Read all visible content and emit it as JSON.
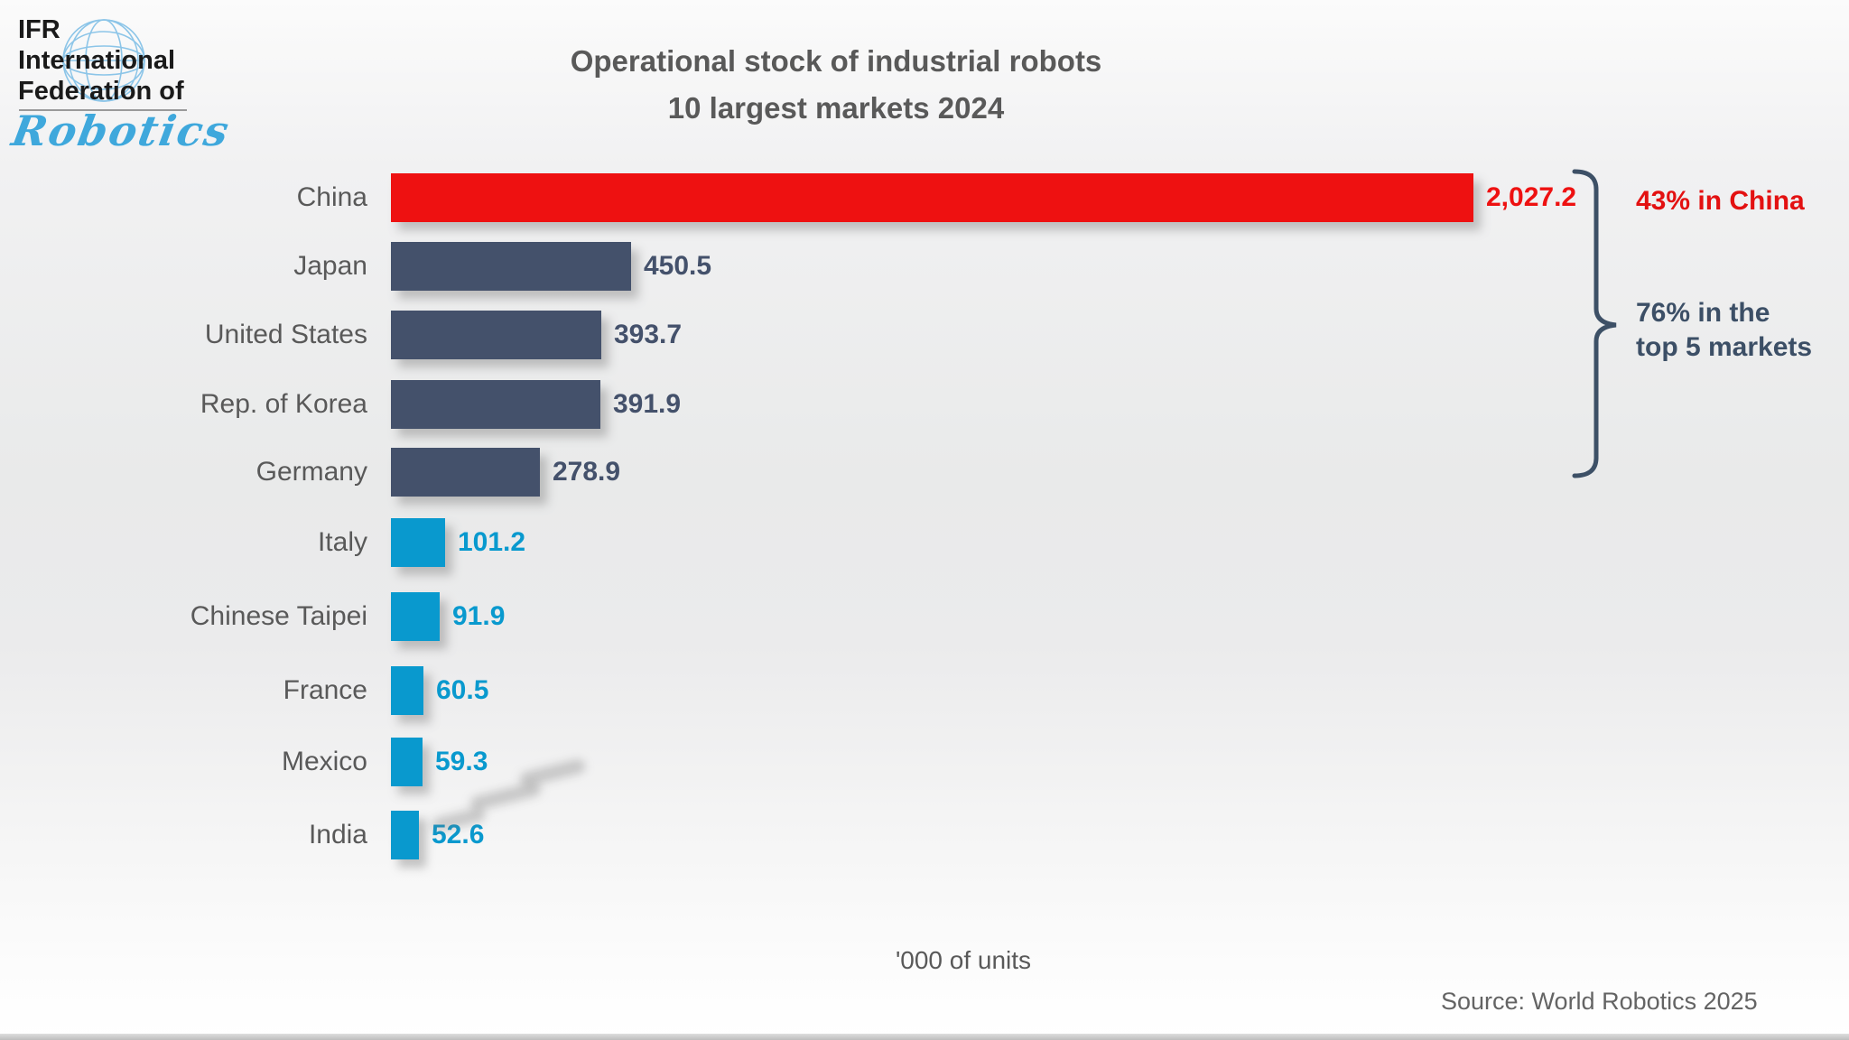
{
  "logo": {
    "line1": "IFR",
    "line2": "International",
    "line3": "Federation of",
    "script": "Robotics",
    "brand_blue": "#3FA8DC"
  },
  "title": {
    "line1": "Operational stock of industrial robots",
    "line2": "10 largest markets 2024"
  },
  "chart_data": {
    "type": "bar",
    "orientation": "horizontal",
    "title": "Operational stock of industrial robots – 10 largest markets 2024",
    "categories": [
      "China",
      "Japan",
      "United States",
      "Rep. of Korea",
      "Germany",
      "Italy",
      "Chinese Taipei",
      "France",
      "Mexico",
      "India"
    ],
    "values": [
      2027.2,
      450.5,
      393.7,
      391.9,
      278.9,
      101.2,
      91.9,
      60.5,
      59.3,
      52.6
    ],
    "value_labels": [
      "2,027.2",
      "450.5",
      "393.7",
      "391.9",
      "278.9",
      "101.2",
      "91.9",
      "60.5",
      "59.3",
      "52.6"
    ],
    "bar_colors": [
      "#EE1111",
      "#44516B",
      "#44516B",
      "#44516B",
      "#44516B",
      "#0999CE",
      "#0999CE",
      "#0999CE",
      "#0999CE",
      "#0999CE"
    ],
    "xlabel": "'000 of units",
    "ylabel": "",
    "xlim": [
      0,
      2100
    ],
    "grid": false,
    "legend": "none",
    "annotations": {
      "china": "43% in China",
      "top5_line1": "76% in the",
      "top5_line2": "top 5 markets"
    }
  },
  "footer": {
    "source": "Source: World Robotics 2025"
  },
  "colors": {
    "highlight_red": "#EE1111",
    "slate": "#44516B",
    "cyan": "#0999CE",
    "text_gray": "#595959",
    "brace": "#3D5066"
  }
}
